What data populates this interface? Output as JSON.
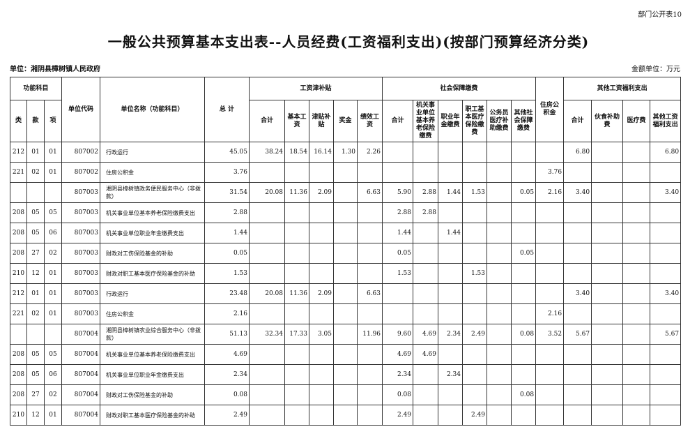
{
  "corner_label": "部门公开表10",
  "title": "一般公共预算基本支出表--人员经费(工资福利支出)(按部门预算经济分类)",
  "unit": "单位：湘阴县樟树镇人民政府",
  "money_unit": "金额单位：万元",
  "headers": {
    "func": "功能科目",
    "lei": "类",
    "kuan": "款",
    "xiang": "项",
    "code": "单位代码",
    "name": "单位名称（功能科目）",
    "total": "总 计",
    "wage": "工资津补贴",
    "wage_sum": "合计",
    "basic": "基本工资",
    "allow": "津贴补贴",
    "bonus": "奖金",
    "perf": "绩效工资",
    "social": "社会保障缴费",
    "social_sum": "合计",
    "pension": "机关事业单位基本养老保险缴费",
    "annuity": "职业年金缴费",
    "medical": "职工基本医疗保险缴费",
    "civil_med": "公务员医疗补助缴费",
    "other_social": "其他社会保障缴费",
    "housing": "住房公积金",
    "other": "其他工资福利支出",
    "other_sum": "合计",
    "meal": "伙食补助费",
    "medfee": "医疗费",
    "other_wel": "其他工资福利支出"
  },
  "rows": [
    [
      "212",
      "01",
      "01",
      "807002",
      "行政运行",
      "45.05",
      "38.24",
      "18.54",
      "16.14",
      "1.30",
      "2.26",
      "",
      "",
      "",
      "",
      "",
      "",
      "",
      "6.80",
      "",
      "",
      "6.80"
    ],
    [
      "221",
      "02",
      "01",
      "807002",
      "住房公积金",
      "3.76",
      "",
      "",
      "",
      "",
      "",
      "",
      "",
      "",
      "",
      "",
      "",
      "3.76",
      "",
      "",
      "",
      ""
    ],
    [
      "",
      "",
      "",
      "807003",
      "湘阴县樟树镇政务便民服务中心（非拨款）",
      "31.54",
      "20.08",
      "11.36",
      "2.09",
      "",
      "6.63",
      "5.90",
      "2.88",
      "1.44",
      "1.53",
      "",
      "0.05",
      "2.16",
      "3.40",
      "",
      "",
      "3.40"
    ],
    [
      "208",
      "05",
      "05",
      "807003",
      "机关事业单位基本养老保险缴费支出",
      "2.88",
      "",
      "",
      "",
      "",
      "",
      "2.88",
      "2.88",
      "",
      "",
      "",
      "",
      "",
      "",
      "",
      "",
      ""
    ],
    [
      "208",
      "05",
      "06",
      "807003",
      "机关事业单位职业年金缴费支出",
      "1.44",
      "",
      "",
      "",
      "",
      "",
      "1.44",
      "",
      "1.44",
      "",
      "",
      "",
      "",
      "",
      "",
      "",
      ""
    ],
    [
      "208",
      "27",
      "02",
      "807003",
      "财政对工伤保险基金的补助",
      "0.05",
      "",
      "",
      "",
      "",
      "",
      "0.05",
      "",
      "",
      "",
      "",
      "0.05",
      "",
      "",
      "",
      "",
      ""
    ],
    [
      "210",
      "12",
      "01",
      "807003",
      "财政对职工基本医疗保险基金的补助",
      "1.53",
      "",
      "",
      "",
      "",
      "",
      "1.53",
      "",
      "",
      "1.53",
      "",
      "",
      "",
      "",
      "",
      "",
      ""
    ],
    [
      "212",
      "01",
      "01",
      "807003",
      "行政运行",
      "23.48",
      "20.08",
      "11.36",
      "2.09",
      "",
      "6.63",
      "",
      "",
      "",
      "",
      "",
      "",
      "",
      "3.40",
      "",
      "",
      "3.40"
    ],
    [
      "221",
      "02",
      "01",
      "807003",
      "住房公积金",
      "2.16",
      "",
      "",
      "",
      "",
      "",
      "",
      "",
      "",
      "",
      "",
      "",
      "2.16",
      "",
      "",
      "",
      ""
    ],
    [
      "",
      "",
      "",
      "807004",
      "湘阴县樟树镇农业综合服务中心（非拨款）",
      "51.13",
      "32.34",
      "17.33",
      "3.05",
      "",
      "11.96",
      "9.60",
      "4.69",
      "2.34",
      "2.49",
      "",
      "0.08",
      "3.52",
      "5.67",
      "",
      "",
      "5.67"
    ],
    [
      "208",
      "05",
      "05",
      "807004",
      "机关事业单位基本养老保险缴费支出",
      "4.69",
      "",
      "",
      "",
      "",
      "",
      "4.69",
      "4.69",
      "",
      "",
      "",
      "",
      "",
      "",
      "",
      "",
      ""
    ],
    [
      "208",
      "05",
      "06",
      "807004",
      "机关事业单位职业年金缴费支出",
      "2.34",
      "",
      "",
      "",
      "",
      "",
      "2.34",
      "",
      "2.34",
      "",
      "",
      "",
      "",
      "",
      "",
      "",
      ""
    ],
    [
      "208",
      "27",
      "02",
      "807004",
      "财政对工伤保险基金的补助",
      "0.08",
      "",
      "",
      "",
      "",
      "",
      "0.08",
      "",
      "",
      "",
      "",
      "0.08",
      "",
      "",
      "",
      "",
      ""
    ],
    [
      "210",
      "12",
      "01",
      "807004",
      "财政对职工基本医疗保险基金的补助",
      "2.49",
      "",
      "",
      "",
      "",
      "",
      "2.49",
      "",
      "",
      "2.49",
      "",
      "",
      "",
      "",
      "",
      "",
      ""
    ]
  ]
}
